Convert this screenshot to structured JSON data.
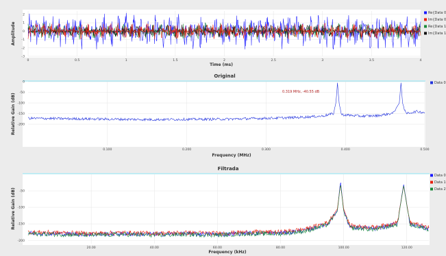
{
  "chart_data": [
    {
      "type": "line",
      "title": "",
      "xlabel": "Time (ms)",
      "ylabel": "Amplitude",
      "xlim": [
        0,
        4
      ],
      "ylim": [
        -3,
        2.4
      ],
      "x_ticks": [
        "0",
        "0.5",
        "1",
        "1.5",
        "2",
        "2.5",
        "3",
        "3.5",
        "4"
      ],
      "y_ticks": [
        "2",
        "1",
        "0",
        "-1",
        "-2",
        "-3"
      ],
      "grid": true,
      "legend_position": "right",
      "series": [
        {
          "name": "Re{Data 0}",
          "color": "#1a1aff",
          "amplitude": 2.2
        },
        {
          "name": "Im{Data 0}",
          "color": "#e8200c",
          "amplitude": 1.0
        },
        {
          "name": "Re{Data 1}",
          "color": "#1a8a3a",
          "amplitude": 1.0
        },
        {
          "name": "Im{Data 1}",
          "color": "#111111",
          "amplitude": 0.8
        }
      ]
    },
    {
      "type": "line",
      "title": "Original",
      "xlabel": "Frequency (MHz)",
      "ylabel": "Relative Gain (dB)",
      "xlim": [
        0,
        0.5
      ],
      "ylim": [
        -300,
        0
      ],
      "x_ticks": [
        "0.100",
        "0.200",
        "0.300",
        "0.400",
        "0.500"
      ],
      "y_ticks": [
        "0",
        "-50",
        "-100",
        "-150",
        "-200"
      ],
      "grid": true,
      "legend_position": "right",
      "annotation": "0.319 MHz, -40.55 dB",
      "series": [
        {
          "name": "Data 0",
          "color": "#2233dd",
          "points": [
            [
              0.0,
              -172
            ],
            [
              0.05,
              -174
            ],
            [
              0.1,
              -176
            ],
            [
              0.15,
              -178
            ],
            [
              0.2,
              -177
            ],
            [
              0.25,
              -176
            ],
            [
              0.3,
              -172
            ],
            [
              0.34,
              -168
            ],
            [
              0.37,
              -162
            ],
            [
              0.385,
              -150
            ],
            [
              0.388,
              -100
            ],
            [
              0.39,
              -5
            ],
            [
              0.392,
              -100
            ],
            [
              0.395,
              -155
            ],
            [
              0.42,
              -162
            ],
            [
              0.44,
              -160
            ],
            [
              0.46,
              -148
            ],
            [
              0.468,
              -100
            ],
            [
              0.47,
              -5
            ],
            [
              0.472,
              -100
            ],
            [
              0.476,
              -150
            ],
            [
              0.49,
              -140
            ],
            [
              0.5,
              -145
            ]
          ]
        }
      ]
    },
    {
      "type": "line",
      "title": "Filtrada",
      "xlabel": "Frequency (kHz)",
      "ylabel": "Relative Gain (dB)",
      "xlim": [
        0,
        127
      ],
      "ylim": [
        -210,
        0
      ],
      "x_ticks": [
        "20.00",
        "40.00",
        "60.00",
        "80.00",
        "100.00",
        "120.00"
      ],
      "y_ticks": [
        "-50",
        "-100",
        "-150",
        "-200"
      ],
      "grid": true,
      "legend_position": "right",
      "series": [
        {
          "name": "Data 0",
          "color": "#1a1aff",
          "points": [
            [
              0,
              -178
            ],
            [
              10,
              -180
            ],
            [
              20,
              -182
            ],
            [
              30,
              -180
            ],
            [
              40,
              -182
            ],
            [
              50,
              -180
            ],
            [
              60,
              -182
            ],
            [
              70,
              -178
            ],
            [
              80,
              -178
            ],
            [
              88,
              -170
            ],
            [
              95,
              -150
            ],
            [
              98,
              -110
            ],
            [
              99,
              -20
            ],
            [
              100,
              -110
            ],
            [
              102,
              -160
            ],
            [
              110,
              -165
            ],
            [
              117,
              -150
            ],
            [
              119,
              -30
            ],
            [
              121,
              -150
            ],
            [
              127,
              -165
            ]
          ]
        },
        {
          "name": "Data 1",
          "color": "#e8200c",
          "points": [
            [
              0,
              -175
            ],
            [
              10,
              -177
            ],
            [
              20,
              -179
            ],
            [
              30,
              -177
            ],
            [
              40,
              -179
            ],
            [
              50,
              -177
            ],
            [
              60,
              -179
            ],
            [
              70,
              -175
            ],
            [
              80,
              -175
            ],
            [
              88,
              -166
            ],
            [
              95,
              -146
            ],
            [
              98,
              -105
            ],
            [
              99,
              -30
            ],
            [
              100,
              -105
            ],
            [
              102,
              -156
            ],
            [
              110,
              -161
            ],
            [
              117,
              -146
            ],
            [
              119,
              -35
            ],
            [
              121,
              -146
            ],
            [
              127,
              -162
            ]
          ]
        },
        {
          "name": "Data 2",
          "color": "#1a8a3a",
          "points": [
            [
              0,
              -180
            ],
            [
              10,
              -182
            ],
            [
              20,
              -184
            ],
            [
              30,
              -182
            ],
            [
              40,
              -184
            ],
            [
              50,
              -182
            ],
            [
              60,
              -184
            ],
            [
              70,
              -180
            ],
            [
              80,
              -180
            ],
            [
              88,
              -172
            ],
            [
              95,
              -152
            ],
            [
              98,
              -112
            ],
            [
              99,
              -28
            ],
            [
              100,
              -112
            ],
            [
              102,
              -162
            ],
            [
              110,
              -167
            ],
            [
              117,
              -152
            ],
            [
              119,
              -34
            ],
            [
              121,
              -152
            ],
            [
              127,
              -167
            ]
          ]
        }
      ]
    }
  ]
}
